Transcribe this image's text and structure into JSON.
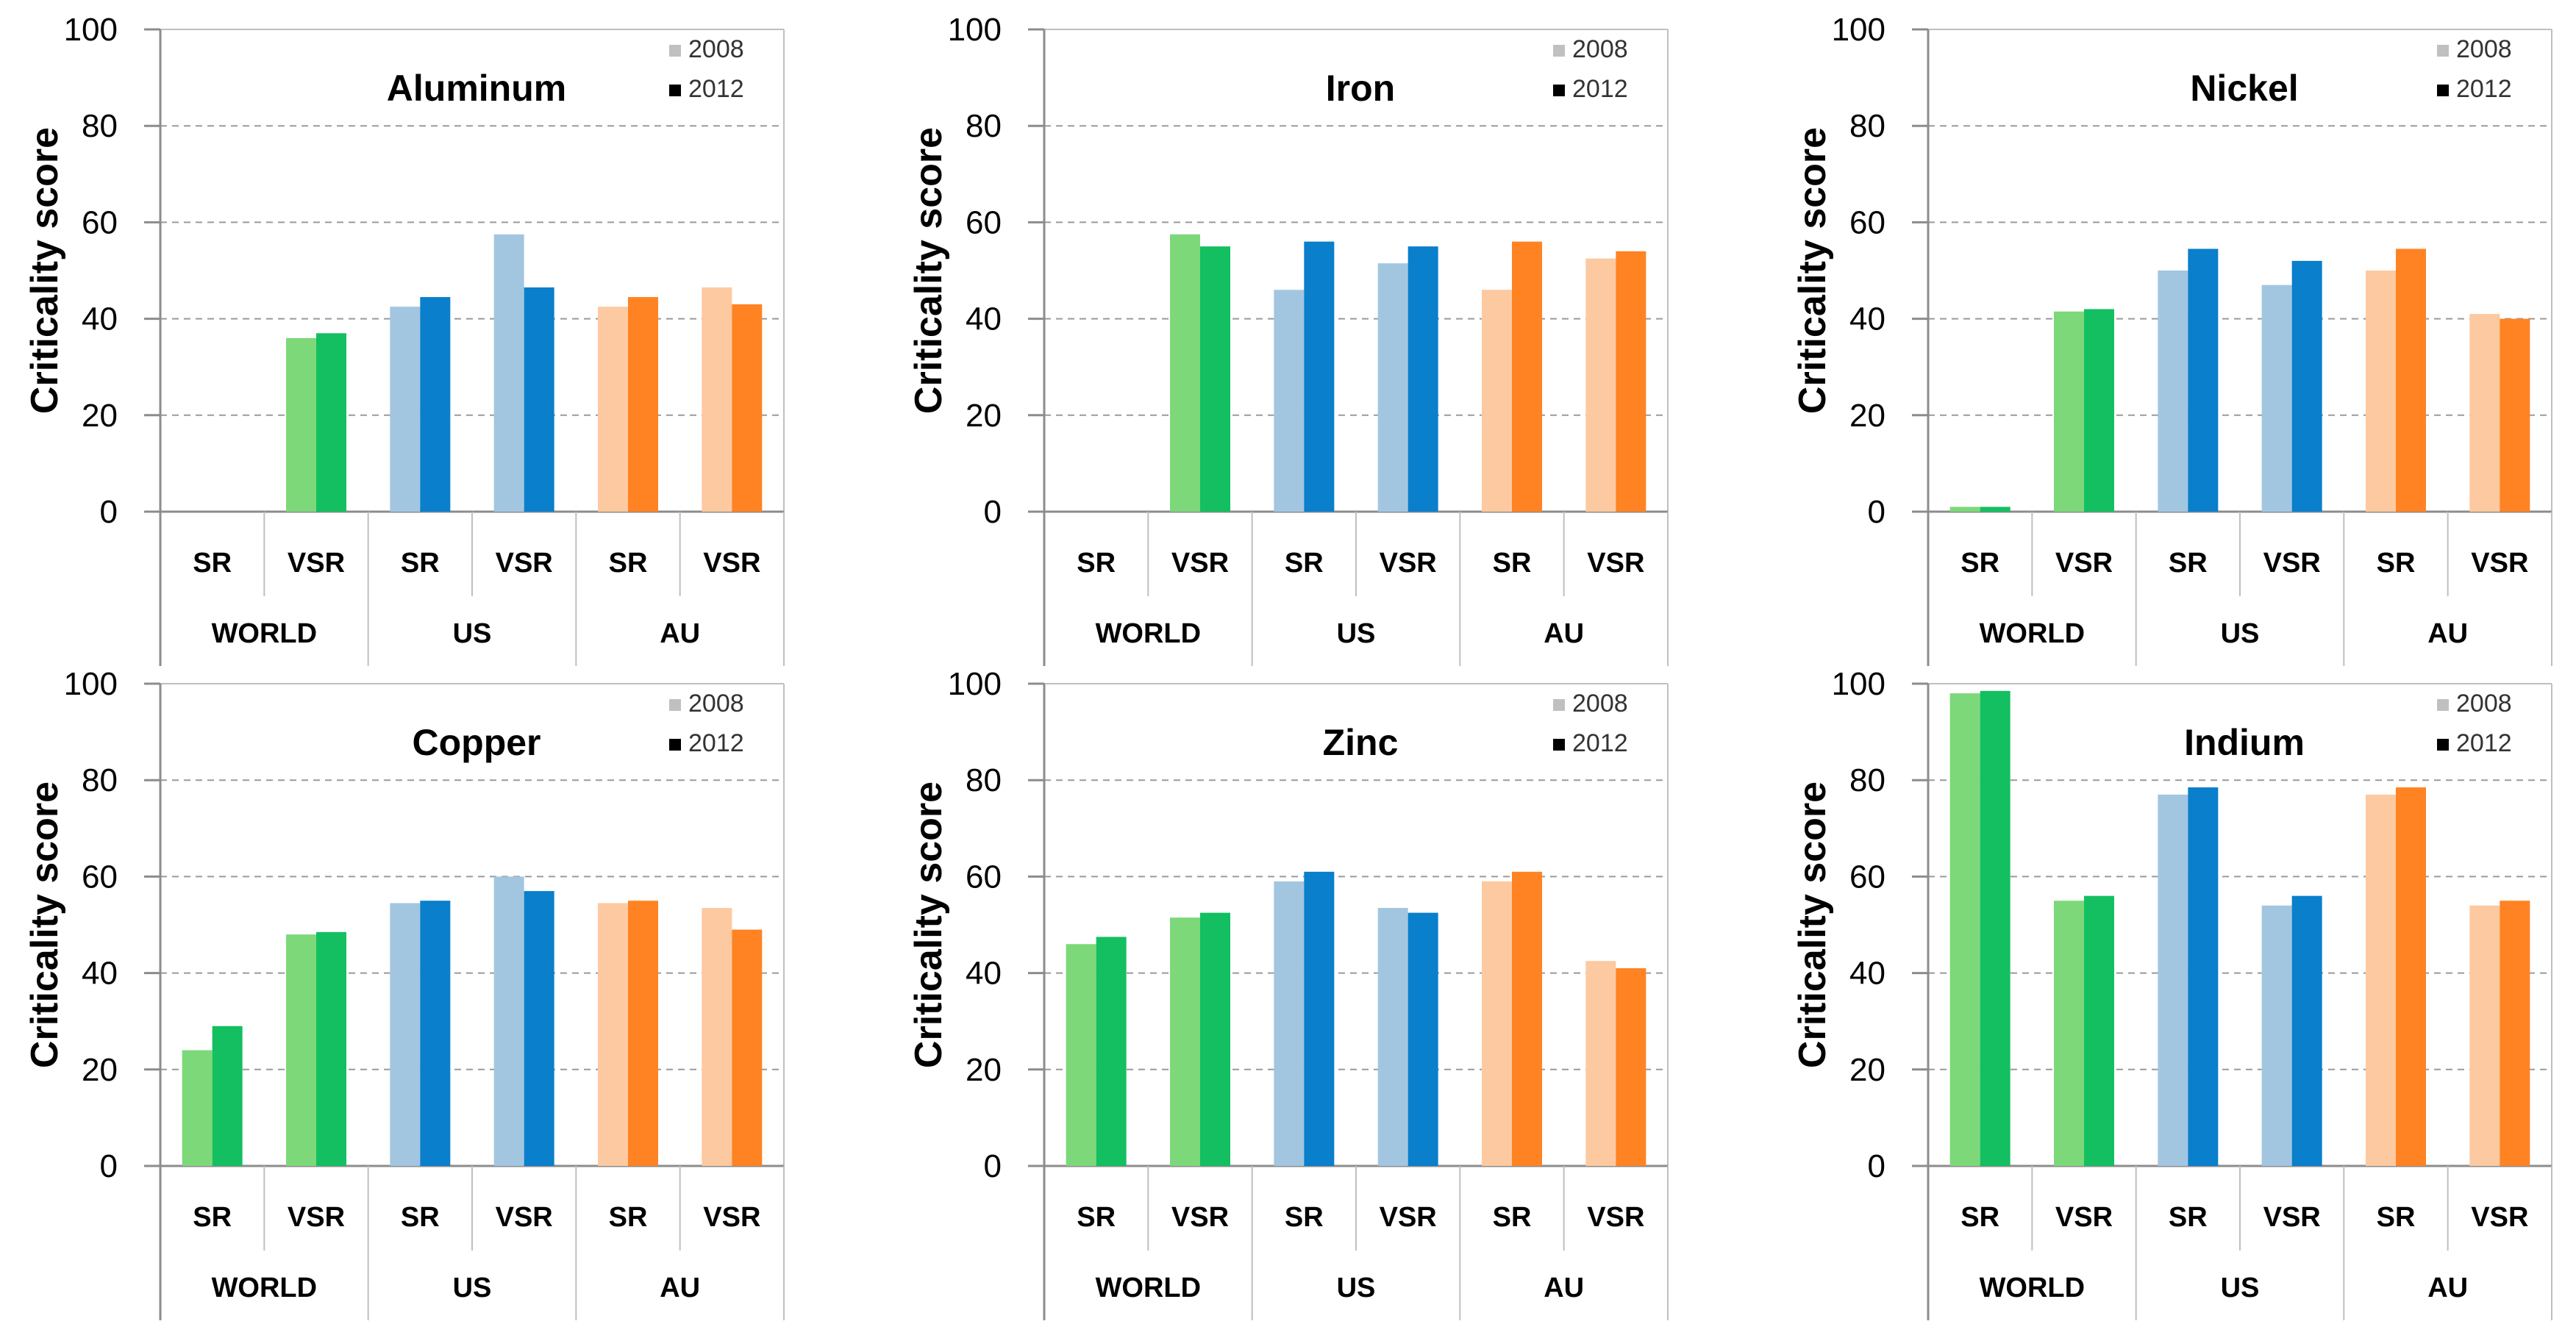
{
  "figure": {
    "ylabel": "Criticality score",
    "legend": [
      "2008",
      "2012"
    ],
    "legend_swatch_colors": [
      "#c0c0c0",
      "#000000"
    ],
    "subcategories": [
      "SR",
      "VSR"
    ],
    "groups": [
      "WORLD",
      "US",
      "AU"
    ],
    "yticks": [
      "0",
      "20",
      "40",
      "60",
      "80",
      "100"
    ],
    "colors": {
      "WORLD": [
        "#7dd87a",
        "#13bf61"
      ],
      "US": [
        "#a3c6e0",
        "#0a7fcb"
      ],
      "AU": [
        "#fdc9a0",
        "#ff8323"
      ]
    }
  },
  "chart_data": [
    {
      "type": "bar",
      "title": "Aluminum",
      "ylabel": "Criticality score",
      "ylim": [
        0,
        100
      ],
      "categories": [
        "WORLD SR",
        "WORLD VSR",
        "US SR",
        "US VSR",
        "AU SR",
        "AU VSR"
      ],
      "series": [
        {
          "name": "2008",
          "values": [
            0,
            36,
            42.5,
            57.5,
            42.5,
            46.5
          ]
        },
        {
          "name": "2012",
          "values": [
            0,
            37,
            44.5,
            46.5,
            44.5,
            43
          ]
        }
      ]
    },
    {
      "type": "bar",
      "title": "Iron",
      "ylabel": "Criticality score",
      "ylim": [
        0,
        100
      ],
      "categories": [
        "WORLD SR",
        "WORLD VSR",
        "US SR",
        "US VSR",
        "AU SR",
        "AU VSR"
      ],
      "series": [
        {
          "name": "2008",
          "values": [
            0,
            57.5,
            46,
            51.5,
            46,
            52.5
          ]
        },
        {
          "name": "2012",
          "values": [
            0,
            55,
            56,
            55,
            56,
            54
          ]
        }
      ]
    },
    {
      "type": "bar",
      "title": "Nickel",
      "ylabel": "Criticality score",
      "ylim": [
        0,
        100
      ],
      "categories": [
        "WORLD SR",
        "WORLD VSR",
        "US SR",
        "US VSR",
        "AU SR",
        "AU VSR"
      ],
      "series": [
        {
          "name": "2008",
          "values": [
            1,
            41.5,
            50,
            47,
            50,
            41
          ]
        },
        {
          "name": "2012",
          "values": [
            1,
            42,
            54.5,
            52,
            54.5,
            40
          ]
        }
      ]
    },
    {
      "type": "bar",
      "title": "Copper",
      "ylabel": "Criticality score",
      "ylim": [
        0,
        100
      ],
      "categories": [
        "WORLD SR",
        "WORLD VSR",
        "US SR",
        "US VSR",
        "AU SR",
        "AU VSR"
      ],
      "series": [
        {
          "name": "2008",
          "values": [
            24,
            48,
            54.5,
            60,
            54.5,
            53.5
          ]
        },
        {
          "name": "2012",
          "values": [
            29,
            48.5,
            55,
            57,
            55,
            49
          ]
        }
      ]
    },
    {
      "type": "bar",
      "title": "Zinc",
      "ylabel": "Criticality score",
      "ylim": [
        0,
        100
      ],
      "categories": [
        "WORLD SR",
        "WORLD VSR",
        "US SR",
        "US VSR",
        "AU SR",
        "AU VSR"
      ],
      "series": [
        {
          "name": "2008",
          "values": [
            46,
            51.5,
            59,
            53.5,
            59,
            42.5
          ]
        },
        {
          "name": "2012",
          "values": [
            47.5,
            52.5,
            61,
            52.5,
            61,
            41
          ]
        }
      ]
    },
    {
      "type": "bar",
      "title": "Indium",
      "ylabel": "Criticality score",
      "ylim": [
        0,
        100
      ],
      "categories": [
        "WORLD SR",
        "WORLD VSR",
        "US SR",
        "US VSR",
        "AU SR",
        "AU VSR"
      ],
      "series": [
        {
          "name": "2008",
          "values": [
            98,
            55,
            77,
            54,
            77,
            54
          ]
        },
        {
          "name": "2012",
          "values": [
            98.5,
            56,
            78.5,
            56,
            78.5,
            55
          ]
        }
      ]
    }
  ]
}
